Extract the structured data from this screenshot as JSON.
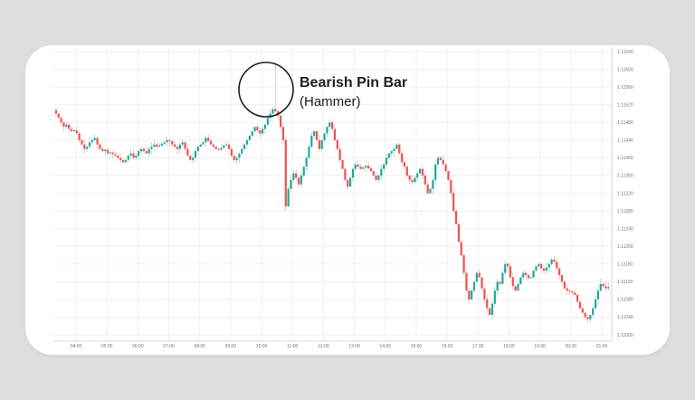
{
  "chart_data": {
    "type": "candlestick",
    "title": "",
    "annotation": {
      "line1": "Bearish Pin Bar",
      "line2": "(Hammer)",
      "circle_center_time": "09:55",
      "circle_center_price": 1.1155
    },
    "xlabel": "",
    "ylabel": "",
    "x_ticks": [
      "04:00",
      "05:00",
      "06:00",
      "07:00",
      "08:00",
      "09:00",
      "10:00",
      "11:00",
      "12:00",
      "13:00",
      "14:00",
      "15:00",
      "16:00",
      "17:00",
      "18:00",
      "19:00",
      "20:00",
      "21:00"
    ],
    "y_ticks": [
      "1.11640",
      "1.11600",
      "1.11560",
      "1.11520",
      "1.11480",
      "1.11440",
      "1.11400",
      "1.11360",
      "1.11320",
      "1.11280",
      "1.11240",
      "1.11200",
      "1.11160",
      "1.11120",
      "1.11080",
      "1.11040",
      "1.11000"
    ],
    "ylim": [
      1.1099,
      1.1165
    ],
    "grid": true,
    "colors": {
      "up": "#26a69a",
      "down": "#ef5350",
      "grid": "#eeeeee",
      "axis": "#cccccc",
      "annotation": "#1e1e1e"
    },
    "start_time": "03:15",
    "candle_minutes": 5,
    "closes": [
      1.115,
      1.1149,
      1.1148,
      1.1147,
      1.11475,
      1.11465,
      1.1146,
      1.11462,
      1.11455,
      1.1144,
      1.1143,
      1.1142,
      1.11425,
      1.11435,
      1.1144,
      1.11445,
      1.1143,
      1.1142,
      1.11415,
      1.11418,
      1.1141,
      1.11412,
      1.11408,
      1.11405,
      1.114,
      1.11395,
      1.1139,
      1.11395,
      1.11405,
      1.1141,
      1.114,
      1.11405,
      1.11415,
      1.1142,
      1.11415,
      1.1141,
      1.1142,
      1.11425,
      1.1143,
      1.11425,
      1.11428,
      1.11432,
      1.11435,
      1.1144,
      1.11438,
      1.1143,
      1.11425,
      1.1142,
      1.1143,
      1.11435,
      1.1142,
      1.11405,
      1.11395,
      1.114,
      1.11415,
      1.11425,
      1.1143,
      1.11435,
      1.11445,
      1.11438,
      1.1143,
      1.11425,
      1.1142,
      1.11418,
      1.11422,
      1.11428,
      1.1143,
      1.1142,
      1.11405,
      1.11395,
      1.114,
      1.1141,
      1.1142,
      1.1143,
      1.1144,
      1.1145,
      1.1146,
      1.1147,
      1.11462,
      1.11455,
      1.11465,
      1.11475,
      1.1149,
      1.115,
      1.1151,
      1.11505,
      1.11495,
      1.1147,
      1.1144,
      1.1129,
      1.1133,
      1.1135,
      1.11365,
      1.11355,
      1.1134,
      1.1136,
      1.1138,
      1.114,
      1.11425,
      1.1145,
      1.1146,
      1.1144,
      1.1142,
      1.1144,
      1.11455,
      1.1147,
      1.1148,
      1.11465,
      1.1144,
      1.1142,
      1.11395,
      1.11375,
      1.1135,
      1.11335,
      1.11355,
      1.11375,
      1.11385,
      1.1138,
      1.11375,
      1.11378,
      1.11382,
      1.11376,
      1.1137,
      1.1136,
      1.1135,
      1.1136,
      1.11375,
      1.11385,
      1.114,
      1.1141,
      1.11415,
      1.1142,
      1.1143,
      1.1141,
      1.1139,
      1.1138,
      1.1136,
      1.1135,
      1.11345,
      1.11355,
      1.11365,
      1.11375,
      1.1136,
      1.1134,
      1.1132,
      1.1133,
      1.1135,
      1.11385,
      1.114,
      1.11395,
      1.11385,
      1.1137,
      1.1135,
      1.1132,
      1.1128,
      1.1125,
      1.1121,
      1.1118,
      1.1114,
      1.111,
      1.1108,
      1.111,
      1.1112,
      1.1114,
      1.1113,
      1.11105,
      1.1108,
      1.1106,
      1.11045,
      1.1107,
      1.111,
      1.1112,
      1.11115,
      1.1114,
      1.1116,
      1.11155,
      1.1113,
      1.1111,
      1.111,
      1.11115,
      1.1113,
      1.1114,
      1.11135,
      1.11128,
      1.1113,
      1.11145,
      1.11155,
      1.1116,
      1.1115,
      1.11145,
      1.11152,
      1.1116,
      1.1117,
      1.11165,
      1.1115,
      1.11135,
      1.1112,
      1.11105,
      1.111,
      1.11098,
      1.11095,
      1.1109,
      1.11075,
      1.1106,
      1.1105,
      1.1104,
      1.11035,
      1.11045,
      1.1106,
      1.1108,
      1.111,
      1.11115,
      1.1111,
      1.11105,
      1.11108,
      1.11112,
      1.1112,
      1.11115,
      1.1112,
      1.11122
    ]
  }
}
